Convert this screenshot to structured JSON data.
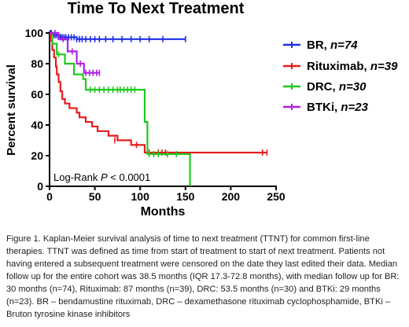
{
  "chart_data": {
    "type": "line",
    "subtype": "kaplan-meier step",
    "title": "Time To Next Treatment",
    "xlabel": "Months",
    "ylabel": "Percent survival",
    "xlim": [
      0,
      250
    ],
    "ylim": [
      0,
      100
    ],
    "xticks": [
      "0",
      "50",
      "100",
      "150",
      "200",
      "250"
    ],
    "yticks": [
      "0",
      "20",
      "40",
      "60",
      "80",
      "100"
    ],
    "grid": false,
    "legend_position": "right",
    "annotation": {
      "prefix": "Log-Rank ",
      "p": "P",
      "suffix": " < 0.0001"
    },
    "series": [
      {
        "name": "BR",
        "n_label": "n=74",
        "color": "#1f2ee6",
        "steps": [
          [
            0,
            100
          ],
          [
            3,
            98.6
          ],
          [
            12,
            97.2
          ],
          [
            30,
            96
          ]
        ],
        "end_x": 150,
        "censors": [
          [
            1,
            100
          ],
          [
            2,
            100
          ],
          [
            3,
            98.6
          ],
          [
            5,
            98.6
          ],
          [
            7,
            98.6
          ],
          [
            9,
            98.6
          ],
          [
            12,
            97.2
          ],
          [
            14,
            97.2
          ],
          [
            16,
            97.2
          ],
          [
            18,
            97.2
          ],
          [
            21,
            97.2
          ],
          [
            24,
            97.2
          ],
          [
            27,
            97.2
          ],
          [
            30,
            96
          ],
          [
            33,
            96
          ],
          [
            36,
            96
          ],
          [
            40,
            96
          ],
          [
            45,
            96
          ],
          [
            50,
            96
          ],
          [
            55,
            96
          ],
          [
            62,
            96
          ],
          [
            70,
            96
          ],
          [
            80,
            96
          ],
          [
            90,
            96
          ],
          [
            100,
            96
          ],
          [
            110,
            96
          ],
          [
            125,
            96
          ],
          [
            150,
            96
          ]
        ]
      },
      {
        "name": "Rituximab",
        "n_label": "n=39",
        "color": "#e61c1c",
        "steps": [
          [
            0,
            100
          ],
          [
            1,
            95
          ],
          [
            3,
            89
          ],
          [
            5,
            84
          ],
          [
            7,
            78
          ],
          [
            8,
            73
          ],
          [
            10,
            68
          ],
          [
            12,
            62
          ],
          [
            14,
            57
          ],
          [
            17,
            54
          ],
          [
            22,
            51
          ],
          [
            30,
            48
          ],
          [
            33,
            45
          ],
          [
            40,
            42
          ],
          [
            47,
            39
          ],
          [
            53,
            36
          ],
          [
            65,
            33
          ],
          [
            75,
            30
          ],
          [
            90,
            27
          ],
          [
            105,
            22
          ]
        ],
        "end_x": 240,
        "censors": [
          [
            72,
            30
          ],
          [
            96,
            27
          ],
          [
            110,
            22
          ],
          [
            120,
            22
          ],
          [
            124,
            22
          ],
          [
            128,
            22
          ],
          [
            235,
            22
          ],
          [
            240,
            22
          ]
        ]
      },
      {
        "name": "DRC",
        "n_label": "n=30",
        "color": "#1ec81e",
        "steps": [
          [
            0,
            100
          ],
          [
            3,
            93
          ],
          [
            8,
            86
          ],
          [
            17,
            80
          ],
          [
            27,
            73
          ],
          [
            37,
            70
          ],
          [
            40,
            63
          ],
          [
            105,
            42
          ],
          [
            108,
            21
          ],
          [
            155,
            0
          ]
        ],
        "end_x": 155,
        "censors": [
          [
            10,
            86
          ],
          [
            45,
            63
          ],
          [
            50,
            63
          ],
          [
            55,
            63
          ],
          [
            60,
            63
          ],
          [
            65,
            63
          ],
          [
            70,
            63
          ],
          [
            75,
            63
          ],
          [
            78,
            63
          ],
          [
            82,
            63
          ],
          [
            86,
            63
          ],
          [
            90,
            63
          ],
          [
            94,
            63
          ],
          [
            110,
            21
          ],
          [
            115,
            21
          ],
          [
            120,
            21
          ],
          [
            130,
            21
          ],
          [
            140,
            21
          ]
        ]
      },
      {
        "name": "BTKi",
        "n_label": "n=23",
        "color": "#b21ee6",
        "steps": [
          [
            0,
            100
          ],
          [
            10,
            96
          ],
          [
            20,
            88
          ],
          [
            30,
            80
          ],
          [
            38,
            74
          ]
        ],
        "end_x": 55,
        "censors": [
          [
            6,
            100
          ],
          [
            15,
            96
          ],
          [
            25,
            88
          ],
          [
            34,
            80
          ],
          [
            40,
            74
          ],
          [
            44,
            74
          ],
          [
            48,
            74
          ],
          [
            52,
            74
          ],
          [
            55,
            74
          ]
        ]
      }
    ]
  },
  "caption": "Figure 1. Kaplan-Meier survival analysis of time to next treatment (TTNT) for common first-line therapies. TTNT was defined as time from start of treatment to start of next treatment. Patients not having entered a subsequent treatment were censored on the date they last edited their data. Median follow up for the entire cohort was 38.5 months (IQR 17.3-72.8 months), with median follow up for BR: 30 months (n=74), Rituximab: 87 months (n=39), DRC: 53.5 months (n=30) and BTKi: 29 months (n=23). BR – bendamustine rituximab, DRC – dexamethasone rituximab cyclophosphamide, BTKi – Bruton tyrosine kinase inhibitors"
}
